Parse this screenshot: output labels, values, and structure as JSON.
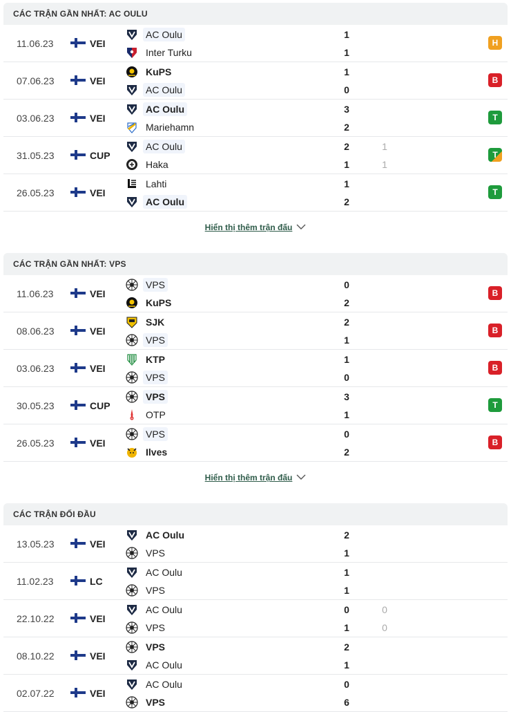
{
  "colors": {
    "H": "#f0a020",
    "B": "#d92028",
    "T": "#1e9b3c",
    "T_half": "#f0a020"
  },
  "sections": [
    {
      "title": "CÁC TRẬN GẦN NHẤT: AC OULU",
      "more": "Hiển thị thêm trận đấu",
      "matches": [
        {
          "date": "11.06.23",
          "comp": "VEI",
          "home": "AC Oulu",
          "away": "Inter Turku",
          "hs": "1",
          "as": "1",
          "hp": "",
          "ap": "",
          "hl": 1,
          "win": 0,
          "res": "H",
          "home_logo": "ac-oulu",
          "away_logo": "inter-turku"
        },
        {
          "date": "07.06.23",
          "comp": "VEI",
          "home": "KuPS",
          "away": "AC Oulu",
          "hs": "1",
          "as": "0",
          "hp": "",
          "ap": "",
          "hl": 2,
          "win": 1,
          "res": "B",
          "home_logo": "kups",
          "away_logo": "ac-oulu"
        },
        {
          "date": "03.06.23",
          "comp": "VEI",
          "home": "AC Oulu",
          "away": "Mariehamn",
          "hs": "3",
          "as": "2",
          "hp": "",
          "ap": "",
          "hl": 1,
          "win": 1,
          "res": "T",
          "home_logo": "ac-oulu",
          "away_logo": "mariehamn"
        },
        {
          "date": "31.05.23",
          "comp": "CUP",
          "home": "AC Oulu",
          "away": "Haka",
          "hs": "2",
          "as": "1",
          "hp": "1",
          "ap": "1",
          "hl": 1,
          "win": 0,
          "res": "T-half",
          "res_label": "T",
          "home_logo": "ac-oulu",
          "away_logo": "haka"
        },
        {
          "date": "26.05.23",
          "comp": "VEI",
          "home": "Lahti",
          "away": "AC Oulu",
          "hs": "1",
          "as": "2",
          "hp": "",
          "ap": "",
          "hl": 2,
          "win": 2,
          "res": "T",
          "home_logo": "lahti",
          "away_logo": "ac-oulu"
        }
      ]
    },
    {
      "title": "CÁC TRẬN GẦN NHẤT: VPS",
      "more": "Hiển thị thêm trận đấu",
      "matches": [
        {
          "date": "11.06.23",
          "comp": "VEI",
          "home": "VPS",
          "away": "KuPS",
          "hs": "0",
          "as": "2",
          "hp": "",
          "ap": "",
          "hl": 1,
          "win": 2,
          "res": "B",
          "home_logo": "vps",
          "away_logo": "kups"
        },
        {
          "date": "08.06.23",
          "comp": "VEI",
          "home": "SJK",
          "away": "VPS",
          "hs": "2",
          "as": "1",
          "hp": "",
          "ap": "",
          "hl": 2,
          "win": 1,
          "res": "B",
          "home_logo": "sjk",
          "away_logo": "vps"
        },
        {
          "date": "03.06.23",
          "comp": "VEI",
          "home": "KTP",
          "away": "VPS",
          "hs": "1",
          "as": "0",
          "hp": "",
          "ap": "",
          "hl": 2,
          "win": 1,
          "res": "B",
          "home_logo": "ktp",
          "away_logo": "vps"
        },
        {
          "date": "30.05.23",
          "comp": "CUP",
          "home": "VPS",
          "away": "OTP",
          "hs": "3",
          "as": "1",
          "hp": "",
          "ap": "",
          "hl": 1,
          "win": 1,
          "res": "T",
          "home_logo": "vps",
          "away_logo": "otp"
        },
        {
          "date": "26.05.23",
          "comp": "VEI",
          "home": "VPS",
          "away": "Ilves",
          "hs": "0",
          "as": "2",
          "hp": "",
          "ap": "",
          "hl": 1,
          "win": 2,
          "res": "B",
          "home_logo": "vps",
          "away_logo": "ilves"
        }
      ]
    },
    {
      "title": "CÁC TRẬN ĐỐI ĐẦU",
      "more": "",
      "matches": [
        {
          "date": "13.05.23",
          "comp": "VEI",
          "home": "AC Oulu",
          "away": "VPS",
          "hs": "2",
          "as": "1",
          "hp": "",
          "ap": "",
          "hl": 0,
          "win": 1,
          "res": "",
          "home_logo": "ac-oulu",
          "away_logo": "vps"
        },
        {
          "date": "11.02.23",
          "comp": "LC",
          "home": "AC Oulu",
          "away": "VPS",
          "hs": "1",
          "as": "1",
          "hp": "",
          "ap": "",
          "hl": 0,
          "win": 0,
          "res": "",
          "home_logo": "ac-oulu",
          "away_logo": "vps"
        },
        {
          "date": "22.10.22",
          "comp": "VEI",
          "home": "AC Oulu",
          "away": "VPS",
          "hs": "0",
          "as": "1",
          "hp": "0",
          "ap": "0",
          "hl": 0,
          "win": 0,
          "res": "",
          "home_logo": "ac-oulu",
          "away_logo": "vps"
        },
        {
          "date": "08.10.22",
          "comp": "VEI",
          "home": "VPS",
          "away": "AC Oulu",
          "hs": "2",
          "as": "1",
          "hp": "",
          "ap": "",
          "hl": 0,
          "win": 1,
          "res": "",
          "home_logo": "vps",
          "away_logo": "ac-oulu"
        },
        {
          "date": "02.07.22",
          "comp": "VEI",
          "home": "AC Oulu",
          "away": "VPS",
          "hs": "0",
          "as": "6",
          "hp": "",
          "ap": "",
          "hl": 0,
          "win": 2,
          "res": "",
          "home_logo": "ac-oulu",
          "away_logo": "vps"
        }
      ]
    }
  ]
}
